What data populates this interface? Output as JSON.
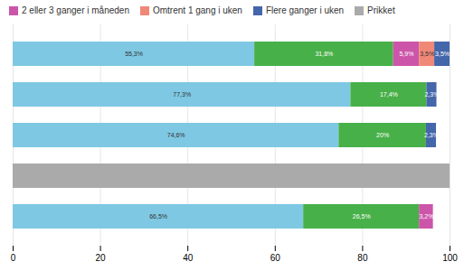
{
  "chart_data": {
    "type": "bar",
    "orientation": "horizontal",
    "stacked": true,
    "data_labels": true,
    "grid": true,
    "tick_labels": "x",
    "categories": [
      null,
      null,
      null,
      null,
      null
    ],
    "xlim": [
      0,
      100
    ],
    "xticks": [
      0,
      20,
      40,
      60,
      80,
      100
    ],
    "series": [
      {
        "name": null,
        "color": "#7EC8E3",
        "values": [
          55.3,
          77.3,
          74.6,
          null,
          66.5
        ],
        "value_labels": [
          "55,3%",
          "77,3%",
          "74,6%",
          null,
          "66,5%"
        ]
      },
      {
        "name": null,
        "color": "#48B048",
        "values": [
          31.8,
          17.4,
          20.0,
          null,
          26.5
        ],
        "value_labels": [
          "31,8%",
          "17,4%",
          "20%",
          null,
          "26,5%"
        ]
      },
      {
        "name": "2 eller 3 ganger i måneden",
        "color": "#CC55AA",
        "values": [
          5.9,
          null,
          null,
          null,
          3.2
        ],
        "value_labels": [
          "5,9%",
          null,
          null,
          null,
          "3,2%"
        ]
      },
      {
        "name": "Omtrent 1 gang i uken",
        "color": "#F08878",
        "values": [
          3.5,
          null,
          null,
          null,
          null
        ],
        "value_labels": [
          "3,5%",
          null,
          null,
          null,
          null
        ]
      },
      {
        "name": "Flere ganger i uken",
        "color": "#4466AA",
        "values": [
          3.5,
          2.3,
          2.3,
          null,
          null
        ],
        "value_labels": [
          "3,5%",
          "2,3%",
          "2,3%",
          null,
          null
        ]
      },
      {
        "name": "Prikket",
        "color": "#AAAAAA",
        "values": [
          null,
          null,
          null,
          100.0,
          null
        ],
        "value_labels": [
          null,
          null,
          null,
          null,
          null
        ]
      }
    ]
  }
}
